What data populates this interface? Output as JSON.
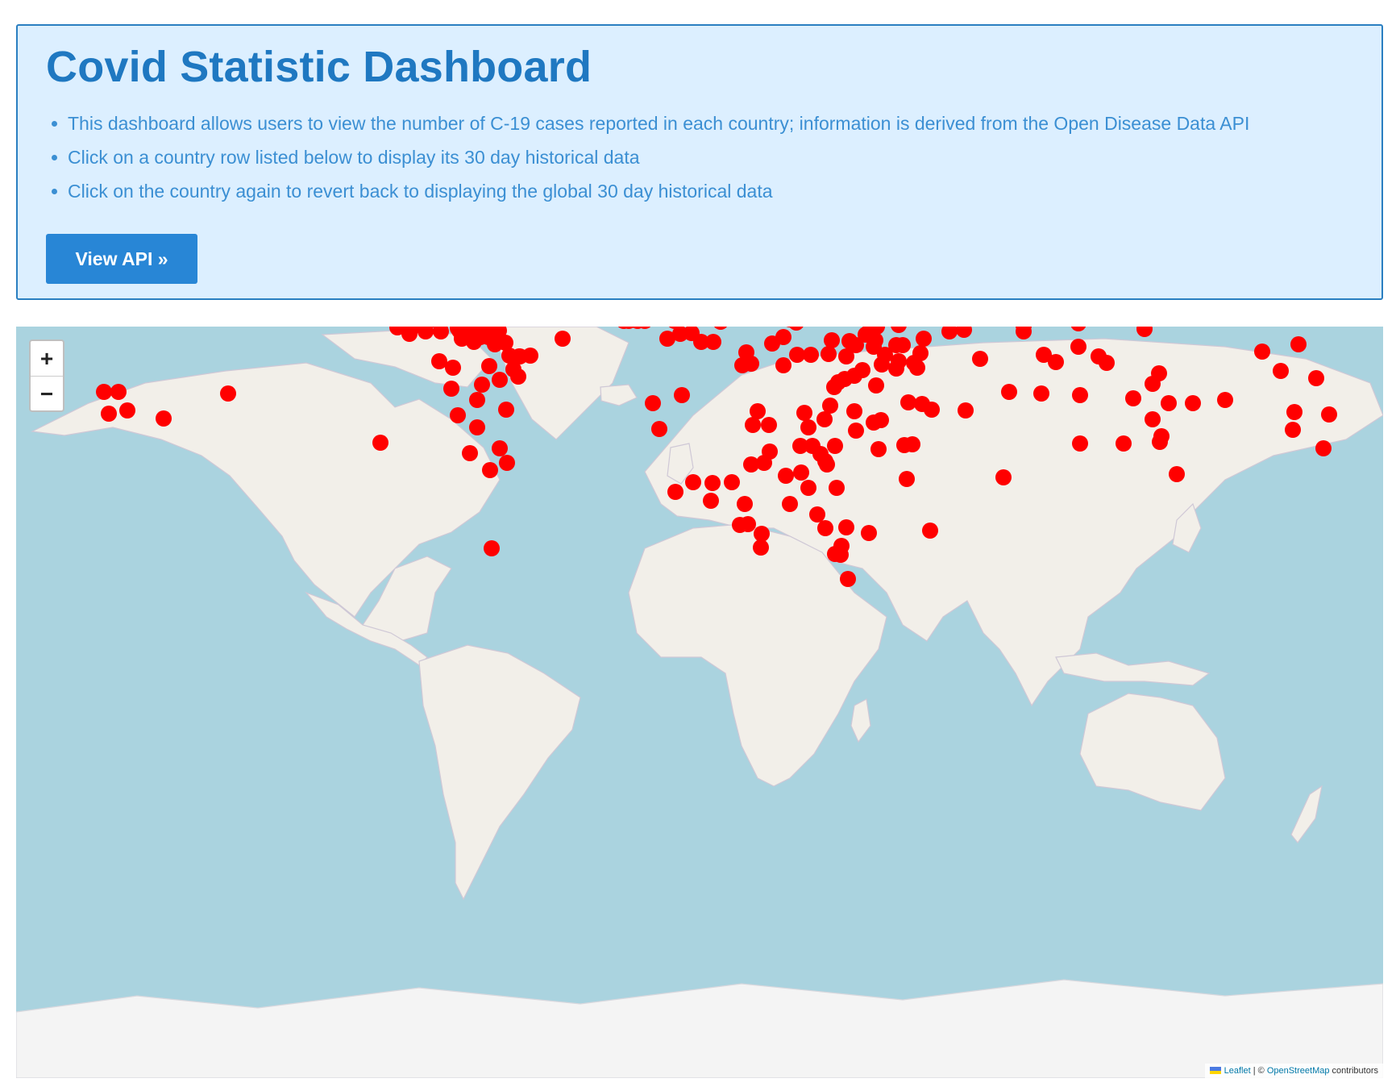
{
  "header": {
    "title": "Covid Statistic Dashboard",
    "bullets": [
      "This dashboard allows users to view the number of C-19 cases reported in each country; information is derived from the Open Disease Data API",
      "Click on a country row listed below to display its 30 day historical data",
      "Click on the country again to revert back to displaying the global 30 day historical data"
    ],
    "button_label": "View API »"
  },
  "map": {
    "zoom_in_label": "+",
    "zoom_out_label": "−",
    "attribution": {
      "leaflet": "Leaflet",
      "separator": " | © ",
      "osm": "OpenStreetMap",
      "suffix": " contributors"
    },
    "marker_color": "#ff0000",
    "water_color": "#aad3df",
    "land_color": "#f2efe9"
  }
}
